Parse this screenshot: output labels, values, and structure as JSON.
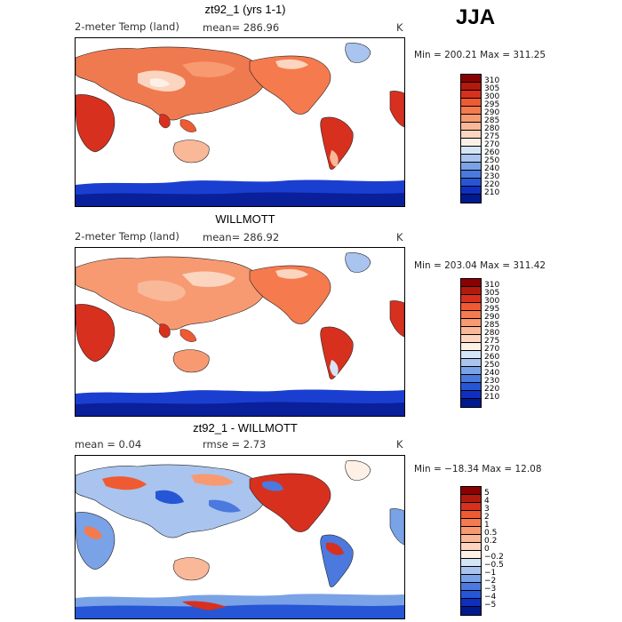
{
  "season": "JJA",
  "panels": [
    {
      "title": "zt92_1 (yrs 1-1)",
      "left_text": "2-meter Temp (land)",
      "mid_text": "mean= 286.96",
      "unit": "K",
      "minmax": "Min = 200.21 Max = 311.25",
      "colorbar": {
        "labels": [
          "310",
          "305",
          "300",
          "295",
          "290",
          "285",
          "280",
          "275",
          "270",
          "260",
          "250",
          "240",
          "230",
          "220",
          "210"
        ],
        "colors": [
          "#8b0000",
          "#b31a0e",
          "#d7301f",
          "#ef5a33",
          "#f57a4e",
          "#f79a72",
          "#f9b898",
          "#fbd5bf",
          "#fdf0e6",
          "#d6e4f7",
          "#a9c4ee",
          "#7aa2e6",
          "#4b79dd",
          "#2656d6",
          "#0f2fc1",
          "#001a8f"
        ]
      }
    },
    {
      "title": "WILLMOTT",
      "left_text": "2-meter Temp (land)",
      "mid_text": "mean= 286.92",
      "unit": "K",
      "minmax": "Min = 203.04 Max = 311.42",
      "colorbar": {
        "labels": [
          "310",
          "305",
          "300",
          "295",
          "290",
          "285",
          "280",
          "275",
          "270",
          "260",
          "250",
          "240",
          "230",
          "220",
          "210"
        ],
        "colors": [
          "#8b0000",
          "#b31a0e",
          "#d7301f",
          "#ef5a33",
          "#f57a4e",
          "#f79a72",
          "#f9b898",
          "#fbd5bf",
          "#fdf0e6",
          "#d6e4f7",
          "#a9c4ee",
          "#7aa2e6",
          "#4b79dd",
          "#2656d6",
          "#0f2fc1",
          "#001a8f"
        ]
      }
    },
    {
      "title": "zt92_1 - WILLMOTT",
      "left_text": "mean =    0.04",
      "mid_text": "rmse =    2.73",
      "unit": "K",
      "minmax": "Min = −18.34 Max =   12.08",
      "colorbar": {
        "labels": [
          "5",
          "4",
          "3",
          "2",
          "1",
          "0.5",
          "0.2",
          "0",
          "−0.2",
          "−0.5",
          "−1",
          "−2",
          "−3",
          "−4",
          "−5"
        ],
        "colors": [
          "#8b0000",
          "#b31a0e",
          "#d7301f",
          "#ef5a33",
          "#f57a4e",
          "#f79a72",
          "#f9b898",
          "#fbd5bf",
          "#fdf0e6",
          "#d6e4f7",
          "#a9c4ee",
          "#7aa2e6",
          "#4b79dd",
          "#2656d6",
          "#0f2fc1",
          "#001a8f"
        ]
      }
    }
  ]
}
